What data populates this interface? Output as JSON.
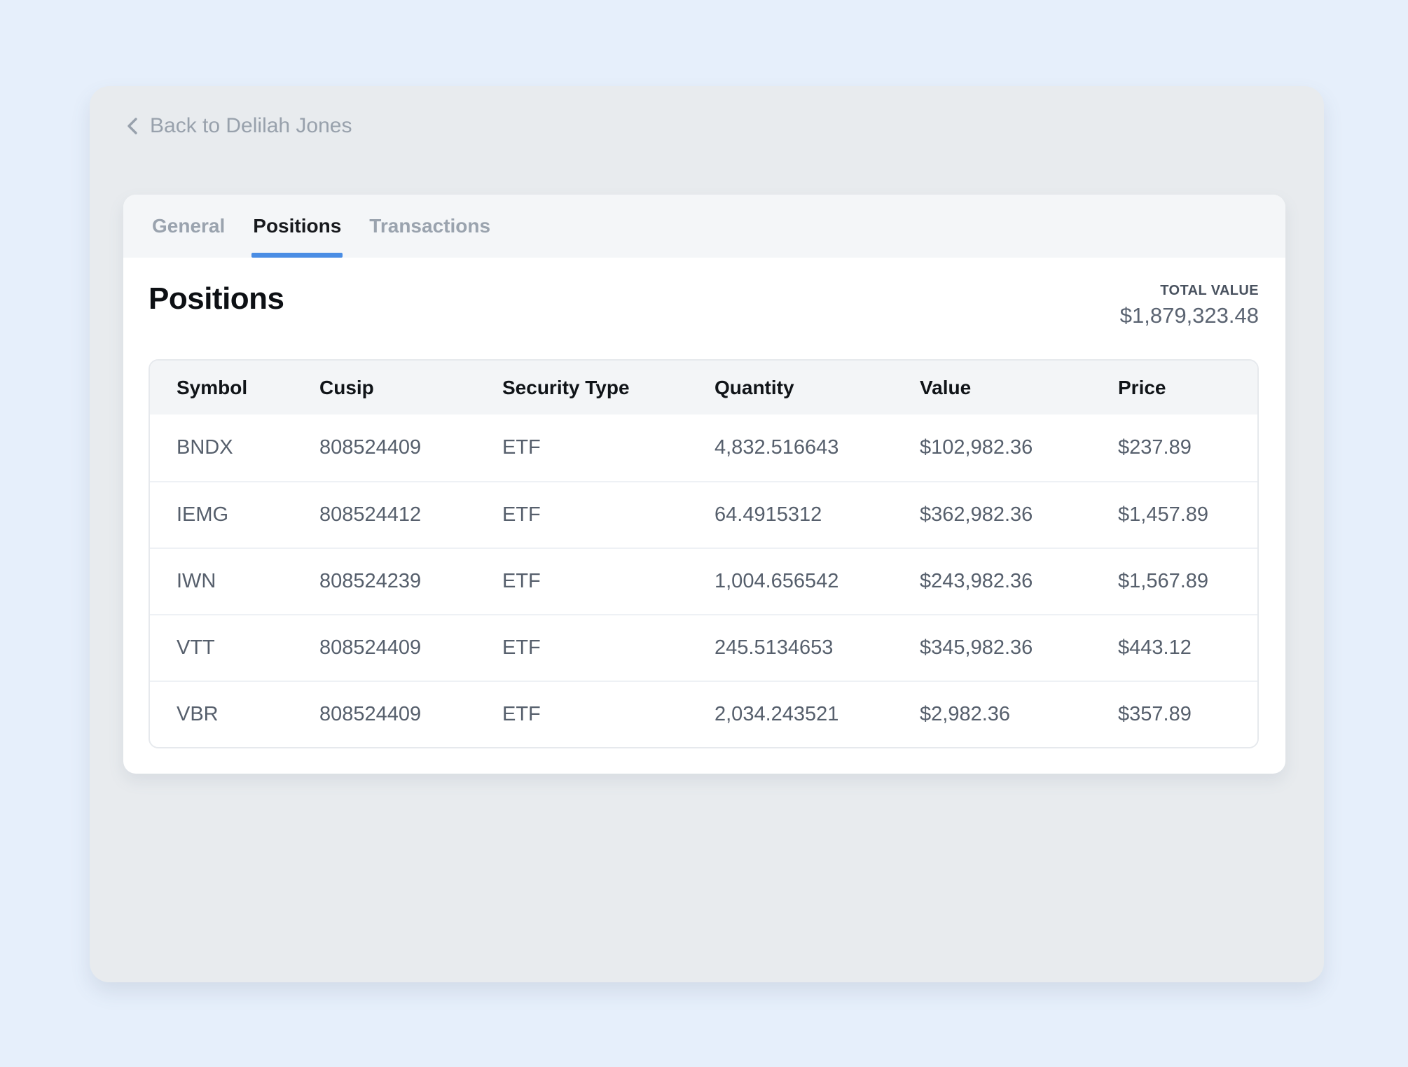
{
  "colors": {
    "accent": "#4a8de4"
  },
  "back_link": {
    "label": "Back to Delilah Jones"
  },
  "tabs": [
    {
      "label": "General",
      "active": false
    },
    {
      "label": "Positions",
      "active": true
    },
    {
      "label": "Transactions",
      "active": false
    }
  ],
  "content": {
    "title": "Positions",
    "total_value_label": "TOTAL VALUE",
    "total_value": "$1,879,323.48"
  },
  "table": {
    "columns": [
      "Symbol",
      "Cusip",
      "Security Type",
      "Quantity",
      "Value",
      "Price"
    ],
    "rows": [
      [
        "BNDX",
        "808524409",
        "ETF",
        "4,832.516643",
        "$102,982.36",
        "$237.89"
      ],
      [
        "IEMG",
        "808524412",
        "ETF",
        "64.4915312",
        "$362,982.36",
        "$1,457.89"
      ],
      [
        "IWN",
        "808524239",
        "ETF",
        "1,004.656542",
        "$243,982.36",
        "$1,567.89"
      ],
      [
        "VTT",
        "808524409",
        "ETF",
        "245.5134653",
        "$345,982.36",
        "$443.12"
      ],
      [
        "VBR",
        "808524409",
        "ETF",
        "2,034.243521",
        "$2,982.36",
        "$357.89"
      ]
    ]
  }
}
